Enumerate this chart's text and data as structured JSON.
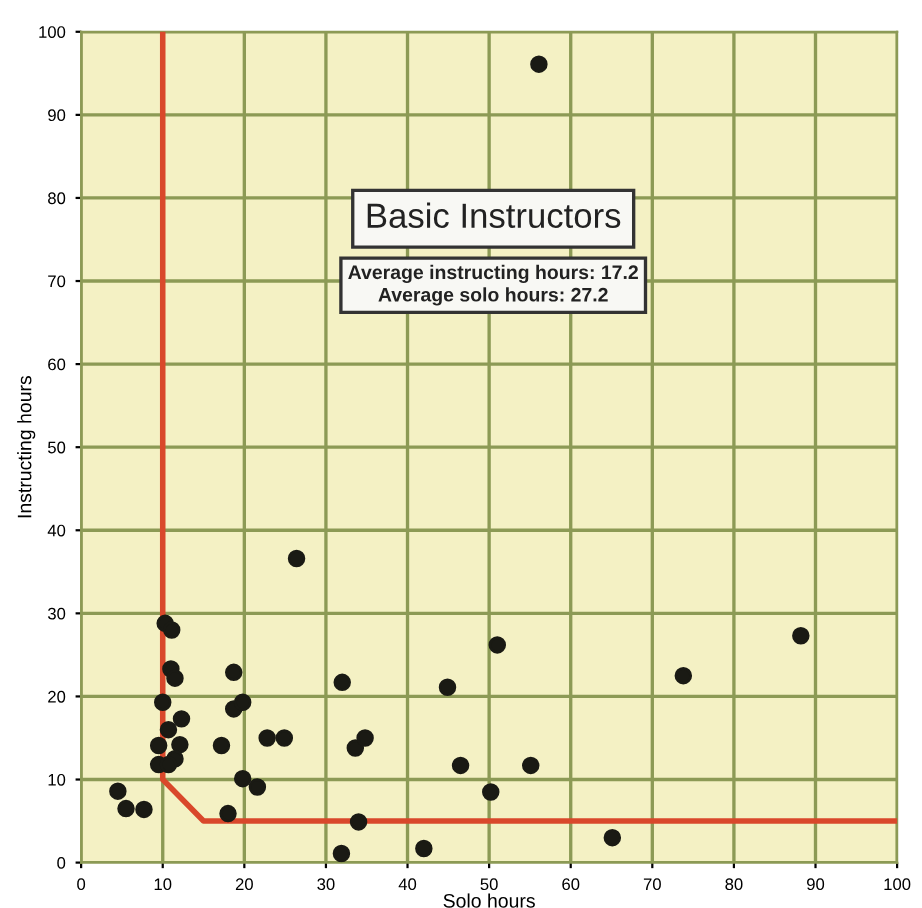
{
  "chart_data": {
    "type": "scatter",
    "title": "Basic Instructors",
    "xlabel": "Solo hours",
    "ylabel": "Instructing hours",
    "annotations": [
      "Average instructing hours: 17.2\nAverage solo hours: 27.2"
    ],
    "xlim": [
      0,
      100
    ],
    "ylim": [
      0,
      100
    ],
    "xticks": [
      0,
      10,
      20,
      30,
      40,
      50,
      60,
      70,
      80,
      90,
      100
    ],
    "yticks": [
      0,
      10,
      20,
      30,
      40,
      50,
      60,
      70,
      80,
      90,
      100
    ],
    "grid": true,
    "series": [
      {
        "color": "#1a1a14",
        "marker": "circle",
        "x": [
          4.5,
          5.5,
          7.7,
          10,
          9.5,
          9.5,
          10.7,
          12.3,
          12.1,
          11.5,
          10.7,
          11,
          11.5,
          18.7,
          18.7,
          19.8,
          17.2,
          22.8,
          24.9,
          32,
          33.6,
          34.8,
          19.8,
          21.6,
          18,
          34,
          31.9,
          42,
          44.9,
          46.5,
          26.4,
          10.3,
          11.1,
          51,
          73.8,
          88.2,
          55.1,
          50.2,
          65.1,
          56.1
        ],
        "values": [
          8.6,
          6.5,
          6.4,
          19.3,
          14.1,
          11.8,
          16,
          17.3,
          14.2,
          12.5,
          11.8,
          23.3,
          22.2,
          22.9,
          18.5,
          19.3,
          14.1,
          15,
          15,
          21.7,
          13.8,
          15,
          10.1,
          9.1,
          5.9,
          4.9,
          1.1,
          1.7,
          21.1,
          11.7,
          36.6,
          28.8,
          28,
          26.2,
          22.5,
          27.3,
          11.7,
          8.5,
          3,
          96.1
        ]
      },
      {
        "type": "line",
        "color": "#d9482b",
        "marker": "none",
        "line_style": "solid",
        "x": [
          10,
          10,
          15,
          100
        ],
        "values": [
          100,
          10,
          5,
          5
        ]
      }
    ]
  }
}
